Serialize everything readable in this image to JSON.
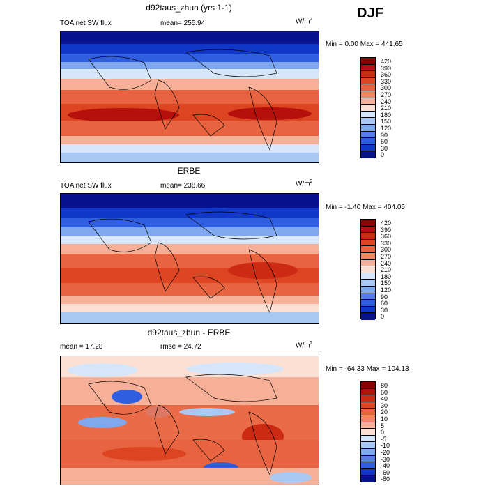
{
  "season": "DJF",
  "panels": [
    {
      "title": "d92taus_zhun (yrs 1-1)",
      "field": "TOA net SW flux",
      "stat": "mean= 255.94",
      "units_base": "W/m",
      "units_exp": "2",
      "minmax": "Min =    0.00 Max = 441.65",
      "levels": [
        "420",
        "390",
        "360",
        "330",
        "300",
        "270",
        "240",
        "210",
        "180",
        "150",
        "120",
        "90",
        "60",
        "30",
        "0"
      ],
      "colors": [
        "#8B0000",
        "#B5100C",
        "#CC2A12",
        "#DD4422",
        "#E86440",
        "#F0866A",
        "#F7B098",
        "#FCE0D4",
        "#D6E6FA",
        "#A9C8F4",
        "#7FA8EE",
        "#557FE6",
        "#2F5FE0",
        "#1037C8",
        "#08128C"
      ]
    },
    {
      "title": "ERBE",
      "field": "TOA net SW flux",
      "stat": "mean= 238.66",
      "units_base": "W/m",
      "units_exp": "2",
      "minmax": "Min =  -1.40 Max = 404.05",
      "levels": [
        "420",
        "390",
        "360",
        "330",
        "300",
        "270",
        "240",
        "210",
        "180",
        "150",
        "120",
        "90",
        "60",
        "30",
        "0"
      ],
      "colors": [
        "#8B0000",
        "#B5100C",
        "#CC2A12",
        "#DD4422",
        "#E86440",
        "#F0866A",
        "#F7B098",
        "#FCE0D4",
        "#D6E6FA",
        "#A9C8F4",
        "#7FA8EE",
        "#557FE6",
        "#2F5FE0",
        "#1037C8",
        "#08128C"
      ]
    },
    {
      "title": "d92taus_zhun - ERBE",
      "field": "mean =   17.28",
      "stat": "rmse =   24.72",
      "units_base": "W/m",
      "units_exp": "2",
      "minmax": "Min = -64.33 Max = 104.13",
      "levels": [
        "80",
        "60",
        "40",
        "30",
        "20",
        "10",
        "5",
        "0",
        "-5",
        "-10",
        "-20",
        "-30",
        "-40",
        "-60",
        "-80"
      ],
      "colors": [
        "#8B0000",
        "#B5100C",
        "#CC2A12",
        "#DD4422",
        "#E86440",
        "#F0866A",
        "#F7B098",
        "#FCE0D4",
        "#D6E6FA",
        "#A9C8F4",
        "#7FA8EE",
        "#557FE6",
        "#2F5FE0",
        "#1037C8",
        "#08128C"
      ]
    }
  ]
}
